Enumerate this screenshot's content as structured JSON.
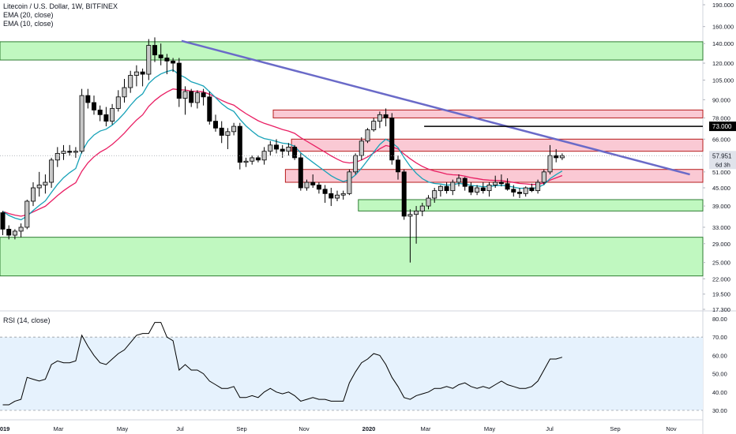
{
  "chart_data": {
    "type": "candlestick",
    "title": "Litecoin / U.S. Dollar, 1W, BITFINEX",
    "indicators": [
      "EMA (20, close)",
      "EMA (10, close)"
    ],
    "price_scale": "log",
    "ylim": [
      17.3,
      190
    ],
    "y_ticks": [
      "190.000",
      "160.000",
      "140.000",
      "120.000",
      "105.000",
      "90.000",
      "78.000",
      "66.000",
      "51.000",
      "45.000",
      "39.000",
      "33.000",
      "29.000",
      "25.000",
      "22.000",
      "19.500",
      "17.300"
    ],
    "y_tick_values": [
      190,
      160,
      140,
      120,
      105,
      90,
      78,
      66,
      51,
      45,
      39,
      33,
      29,
      25,
      22,
      19.5,
      17.3
    ],
    "x_ticks": [
      "2019",
      "Mar",
      "May",
      "Jul",
      "Sep",
      "Nov",
      "2020",
      "Mar",
      "May",
      "Jul",
      "Sep",
      "Nov"
    ],
    "x_ticks_bold": [
      "2019",
      "2020"
    ],
    "current_price_label": "57.951",
    "countdown_label": "6d 3h",
    "level_label": "73.000",
    "level_value": 73,
    "colors": {
      "up_candle": "#c8c8c8",
      "down_candle": "#000000",
      "ema20": "#e91e63",
      "ema10": "#17a2b8",
      "trendline": "#6a6ac8",
      "green_zone_fill": "#b9f7b9",
      "green_zone_stroke": "#2e7d32",
      "red_zone_fill": "#f9c3cf",
      "red_zone_stroke": "#b71c1c",
      "rsi_line": "#000000",
      "rsi_band": "#e6f2fd"
    },
    "zones": [
      {
        "type": "support",
        "x0": 0,
        "x1": 121,
        "low": 123,
        "high": 142
      },
      {
        "type": "support",
        "x0": 0,
        "x1": 121,
        "low": 22.5,
        "high": 30.5
      },
      {
        "type": "support",
        "x0": 59,
        "x1": 121,
        "low": 37.5,
        "high": 41
      },
      {
        "type": "resistance",
        "x0": 45,
        "x1": 121,
        "low": 78,
        "high": 83
      },
      {
        "type": "resistance",
        "x0": 48,
        "x1": 121,
        "low": 60,
        "high": 66
      },
      {
        "type": "resistance",
        "x0": 47,
        "x1": 121,
        "low": 47,
        "high": 52
      }
    ],
    "trendline": {
      "x0": 29.4,
      "y0": 143,
      "x1": 113,
      "y1": 50
    },
    "level_segment": {
      "x0": 69.3,
      "x1": 132
    },
    "candles": [
      [
        37.0,
        37.5,
        31.0,
        32.5
      ],
      [
        32.5,
        33.5,
        30.0,
        31.0
      ],
      [
        31.0,
        32.5,
        30.0,
        32.0
      ],
      [
        32.0,
        34.0,
        30.5,
        33.0
      ],
      [
        33.0,
        41.0,
        32.5,
        40.5
      ],
      [
        40.5,
        47.0,
        39.0,
        45.0
      ],
      [
        45.0,
        51.0,
        42.0,
        46.0
      ],
      [
        46.0,
        50.0,
        43.0,
        47.0
      ],
      [
        47.0,
        57.0,
        45.0,
        56.0
      ],
      [
        56.0,
        62.0,
        53.0,
        59.0
      ],
      [
        59.0,
        63.0,
        56.0,
        60.0
      ],
      [
        60.0,
        63.0,
        58.0,
        59.5
      ],
      [
        59.5,
        62.0,
        57.0,
        60.0
      ],
      [
        60.0,
        98.0,
        59.0,
        93.0
      ],
      [
        93.0,
        98.0,
        84.0,
        88.0
      ],
      [
        88.0,
        93.0,
        80.0,
        83.0
      ],
      [
        83.0,
        86.0,
        76.0,
        80.0
      ],
      [
        80.0,
        85.0,
        73.0,
        76.0
      ],
      [
        76.0,
        87.0,
        74.0,
        84.0
      ],
      [
        84.0,
        97.0,
        82.0,
        92.0
      ],
      [
        92.0,
        106.0,
        88.0,
        99.0
      ],
      [
        99.0,
        113.0,
        95.0,
        109.0
      ],
      [
        109.0,
        118.0,
        100.0,
        112.0
      ],
      [
        112.0,
        115.0,
        100.0,
        110.0
      ],
      [
        110.0,
        145.0,
        105.0,
        138.0
      ],
      [
        138.0,
        147.0,
        121.0,
        128.0
      ],
      [
        128.0,
        140.0,
        118.0,
        125.0
      ],
      [
        125.0,
        129.0,
        110.0,
        122.0
      ],
      [
        122.0,
        125.0,
        112.0,
        120.0
      ],
      [
        120.0,
        125.0,
        85.0,
        91.0
      ],
      [
        91.0,
        100.0,
        80.0,
        96.0
      ],
      [
        96.0,
        98.0,
        85.0,
        88.0
      ],
      [
        88.0,
        97.0,
        84.0,
        95.0
      ],
      [
        95.0,
        98.0,
        86.0,
        92.0
      ],
      [
        92.0,
        96.0,
        74.0,
        76.0
      ],
      [
        76.0,
        80.0,
        70.0,
        72.0
      ],
      [
        72.0,
        76.0,
        64.0,
        68.0
      ],
      [
        68.0,
        72.0,
        61.0,
        70.0
      ],
      [
        70.0,
        75.0,
        68.0,
        73.0
      ],
      [
        73.0,
        75.0,
        52.0,
        55.0
      ],
      [
        55.0,
        57.0,
        53.0,
        55.5
      ],
      [
        55.5,
        58.0,
        54.0,
        57.0
      ],
      [
        57.0,
        58.0,
        55.0,
        56.0
      ],
      [
        56.0,
        62.0,
        54.0,
        60.0
      ],
      [
        60.0,
        65.0,
        58.0,
        63.0
      ],
      [
        63.0,
        66.0,
        59.0,
        61.0
      ],
      [
        61.0,
        63.0,
        57.0,
        60.0
      ],
      [
        60.0,
        64.0,
        58.0,
        62.0
      ],
      [
        62.0,
        63.0,
        56.0,
        57.0
      ],
      [
        57.0,
        59.0,
        44.0,
        45.0
      ],
      [
        45.0,
        48.0,
        44.0,
        47.0
      ],
      [
        47.0,
        50.0,
        45.0,
        46.0
      ],
      [
        46.0,
        47.0,
        43.0,
        44.5
      ],
      [
        44.5,
        46.0,
        40.0,
        43.0
      ],
      [
        43.0,
        45.0,
        39.0,
        41.5
      ],
      [
        41.5,
        44.0,
        40.5,
        42.5
      ],
      [
        42.5,
        44.0,
        41.0,
        43.0
      ],
      [
        43.0,
        52.0,
        42.5,
        51.0
      ],
      [
        51.0,
        59.0,
        50.0,
        58.0
      ],
      [
        58.0,
        67.0,
        56.0,
        65.0
      ],
      [
        65.0,
        72.0,
        64.0,
        71.0
      ],
      [
        71.0,
        78.0,
        70.0,
        76.0
      ],
      [
        76.0,
        82.0,
        72.0,
        80.0
      ],
      [
        80.0,
        84.0,
        73.0,
        78.0
      ],
      [
        78.0,
        81.0,
        54.0,
        56.0
      ],
      [
        56.0,
        58.0,
        48.0,
        51.0
      ],
      [
        51.0,
        52.0,
        35.0,
        36.0
      ],
      [
        36.0,
        38.0,
        25.0,
        36.5
      ],
      [
        36.5,
        39.0,
        29.0,
        37.5
      ],
      [
        37.5,
        40.0,
        36.0,
        39.0
      ],
      [
        39.0,
        42.5,
        38.0,
        41.5
      ],
      [
        41.5,
        45.0,
        40.0,
        44.0
      ],
      [
        44.0,
        46.0,
        42.0,
        45.5
      ],
      [
        45.5,
        47.0,
        43.0,
        44.0
      ],
      [
        44.0,
        48.0,
        42.5,
        47.0
      ],
      [
        47.0,
        50.0,
        45.5,
        48.5
      ],
      [
        48.5,
        49.0,
        44.0,
        45.5
      ],
      [
        45.5,
        47.0,
        42.5,
        43.5
      ],
      [
        43.5,
        46.0,
        42.5,
        45.0
      ],
      [
        45.0,
        47.0,
        43.0,
        44.0
      ],
      [
        44.0,
        47.0,
        42.0,
        46.0
      ],
      [
        46.0,
        49.5,
        45.0,
        47.0
      ],
      [
        47.0,
        50.0,
        45.5,
        46.5
      ],
      [
        46.5,
        48.5,
        44.0,
        44.5
      ],
      [
        44.5,
        46.0,
        42.0,
        43.5
      ],
      [
        43.5,
        45.0,
        41.5,
        43.0
      ],
      [
        43.0,
        45.5,
        42.0,
        45.0
      ],
      [
        45.0,
        46.5,
        43.5,
        44.0
      ],
      [
        44.0,
        48.0,
        43.0,
        47.0
      ],
      [
        47.0,
        52.0,
        46.0,
        51.0
      ],
      [
        51.0,
        63.0,
        50.0,
        58.0
      ],
      [
        58.0,
        61.0,
        55.0,
        57.0
      ],
      [
        57.0,
        59.0,
        56.0,
        57.951
      ]
    ],
    "candle_start_index": 0,
    "candle_spacing_index": 1,
    "rsi": {
      "label": "RSI (14, close)",
      "ylim": [
        25,
        82
      ],
      "y_ticks": [
        "80.00",
        "70.00",
        "60.00",
        "50.00",
        "40.00",
        "30.00"
      ],
      "y_tick_values": [
        80,
        70,
        60,
        50,
        40,
        30
      ],
      "band": [
        30,
        70
      ],
      "values": [
        33,
        33,
        35,
        36,
        48,
        47,
        46,
        47,
        55,
        57,
        56,
        56,
        57,
        71,
        65,
        60,
        56,
        55,
        58,
        61,
        63,
        67,
        71,
        72,
        72,
        78,
        78,
        70,
        68,
        52,
        55,
        52,
        52,
        50,
        46,
        44,
        42,
        42,
        43,
        37,
        37,
        38,
        37,
        40,
        42,
        40,
        39,
        40,
        38,
        35,
        36,
        37,
        36,
        36,
        35,
        35,
        35,
        45,
        51,
        56,
        58,
        61,
        60,
        55,
        48,
        43,
        37,
        36,
        38,
        39,
        40,
        42,
        42,
        43,
        42,
        44,
        45,
        43,
        42,
        43,
        42,
        44,
        46,
        44,
        43,
        42,
        42,
        43,
        46,
        52,
        58,
        58,
        59
      ]
    }
  }
}
